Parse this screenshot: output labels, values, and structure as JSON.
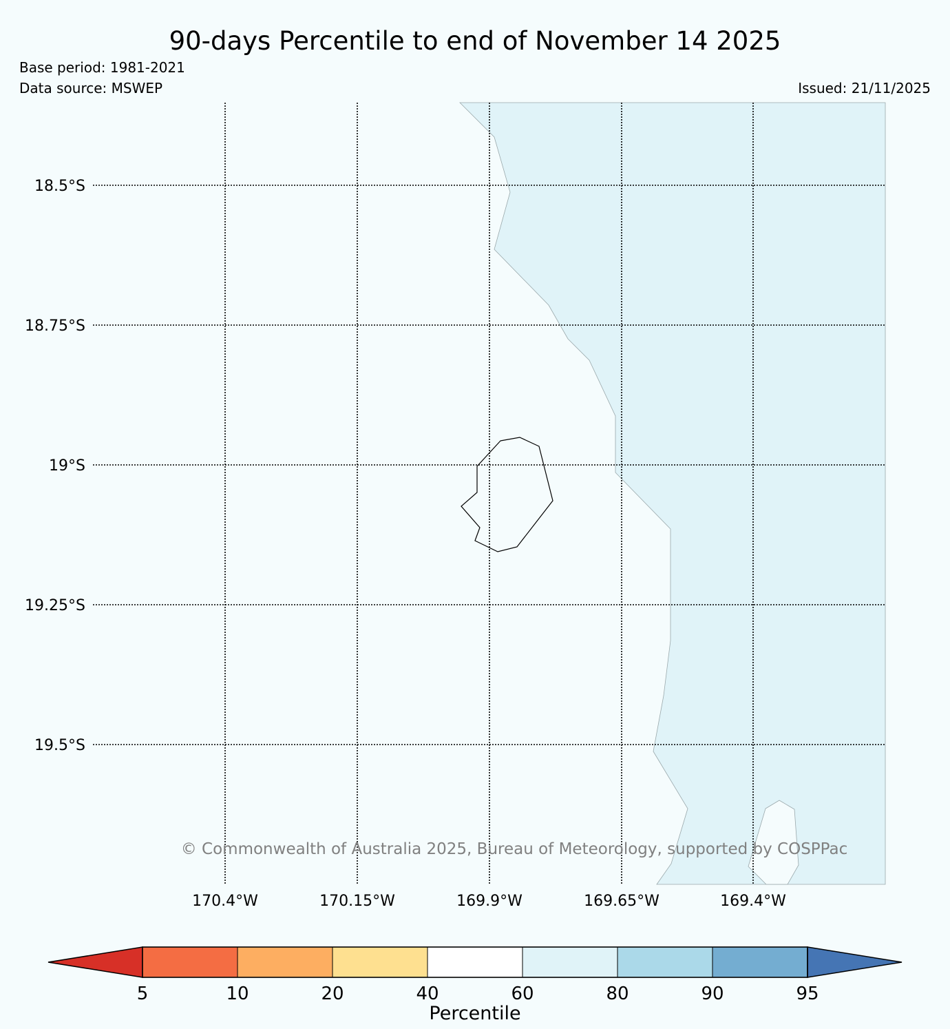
{
  "header": {
    "title": "90-days Percentile to end of November 14 2025",
    "base_period": "Base period: 1981-2021",
    "data_source": "Data source: MSWEP",
    "issued": "Issued: 21/11/2025"
  },
  "map": {
    "latitude_labels": [
      "18.5°S",
      "18.75°S",
      "19°S",
      "19.25°S",
      "19.5°S"
    ],
    "longitude_labels": [
      "170.4°W",
      "170.15°W",
      "169.9°W",
      "169.65°W",
      "169.4°W"
    ],
    "copyright": "© Commonwealth of Australia 2025, Bureau of Meteorology, supported by COSPPac",
    "colors": {
      "background": "#f5fcfd",
      "region_60_80": "#e0f3f8",
      "coastline": "#000000"
    }
  },
  "colorbar": {
    "title": "Percentile",
    "tick_labels": [
      "5",
      "10",
      "20",
      "40",
      "60",
      "80",
      "90",
      "95"
    ],
    "colors": [
      "#d73027",
      "#f46d43",
      "#fdae61",
      "#fee090",
      "#ffffff",
      "#e0f3f8",
      "#abd9e9",
      "#74add1",
      "#4575b4"
    ]
  }
}
